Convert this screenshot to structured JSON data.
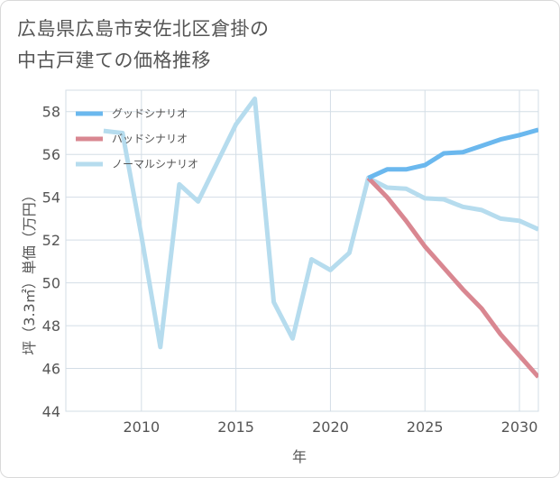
{
  "chart_data": {
    "type": "line",
    "title_lines": [
      "広島県広島市安佐北区倉掛の",
      "中古戸建ての価格推移"
    ],
    "xlabel": "年",
    "ylabel": "坪（3.3㎡）単価（万円）",
    "xlim": [
      2006,
      2031
    ],
    "ylim": [
      44,
      59
    ],
    "x_ticks": [
      2010,
      2015,
      2020,
      2025,
      2030
    ],
    "y_ticks": [
      44,
      46,
      48,
      50,
      52,
      54,
      56,
      58
    ],
    "series": [
      {
        "name": "グッドシナリオ",
        "color": "#6bb8ee",
        "x": [
          2022,
          2023,
          2024,
          2025,
          2026,
          2027,
          2028,
          2029,
          2030,
          2031
        ],
        "values": [
          54.9,
          55.3,
          55.3,
          55.5,
          56.05,
          56.1,
          56.4,
          56.7,
          56.9,
          57.15
        ]
      },
      {
        "name": "バッドシナリオ",
        "color": "#d98791",
        "x": [
          2022,
          2023,
          2024,
          2025,
          2026,
          2027,
          2028,
          2029,
          2030,
          2031
        ],
        "values": [
          54.9,
          54.0,
          52.9,
          51.7,
          50.7,
          49.7,
          48.8,
          47.6,
          46.6,
          45.6
        ]
      },
      {
        "name": "ノーマルシナリオ",
        "color": "#b6dcee",
        "x": [
          2008,
          2009,
          2010,
          2011,
          2012,
          2013,
          2014,
          2015,
          2016,
          2017,
          2018,
          2019,
          2020,
          2021,
          2022,
          2023,
          2024,
          2025,
          2026,
          2027,
          2028,
          2029,
          2030,
          2031
        ],
        "values": [
          57.1,
          57.0,
          52.2,
          47.0,
          54.6,
          53.8,
          55.6,
          57.4,
          58.6,
          49.1,
          47.4,
          51.1,
          50.6,
          51.4,
          54.9,
          54.45,
          54.4,
          53.95,
          53.9,
          53.55,
          53.4,
          53.0,
          52.9,
          52.5
        ]
      }
    ]
  }
}
